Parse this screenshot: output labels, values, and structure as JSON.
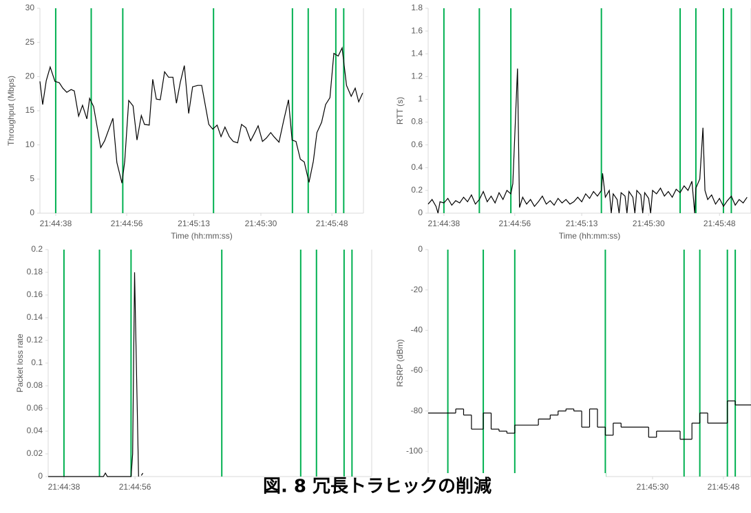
{
  "caption": "図. 8 冗長トラヒックの削減",
  "chart_data": [
    {
      "type": "line",
      "y_label": "Throughput (Mbps)",
      "x_label": "Time (hh:mm:ss)",
      "color": "#000000",
      "xlim": [
        "21:44:34",
        "21:45:56"
      ],
      "xticks": [
        "21:44:38",
        "21:44:56",
        "21:45:13",
        "21:45:30",
        "21:45:48"
      ],
      "ylim": [
        0,
        30
      ],
      "yticks": [
        0,
        5,
        10,
        15,
        20,
        25,
        30
      ],
      "vlines": [
        "21:44:38",
        "21:44:47",
        "21:44:55",
        "21:45:18",
        "21:45:38",
        "21:45:42",
        "21:45:49",
        "21:45:51"
      ],
      "vline_color": "#00b050",
      "x": [
        "21:44:34",
        "21:44:34.7",
        "21:44:35.6",
        "21:44:36.6",
        "21:44:37.8",
        "21:44:38.9",
        "21:44:39.8",
        "21:44:40.8",
        "21:44:41.9",
        "21:44:42.7",
        "21:44:43.8",
        "21:44:44.8",
        "21:44:45.9",
        "21:44:46.6",
        "21:44:47.6",
        "21:44:49.4",
        "21:44:50.4",
        "21:44:52.5",
        "21:44:53.5",
        "21:44:54.8",
        "21:44:55.5",
        "21:44:56.5",
        "21:44:57.6",
        "21:44:58.6",
        "21:44:59.7",
        "21:45:00.5",
        "21:45:01.7",
        "21:45:02.6",
        "21:45:03.5",
        "21:45:04.5",
        "21:45:05.6",
        "21:45:06.6",
        "21:45:07.7",
        "21:45:08.6",
        "21:45:09.6",
        "21:45:10.6",
        "21:45:11.7",
        "21:45:12.7",
        "21:45:14",
        "21:45:15",
        "21:45:16.8",
        "21:45:17.8",
        "21:45:18.9",
        "21:45:19.9",
        "21:45:20.9",
        "21:45:22",
        "21:45:23",
        "21:45:24.1",
        "21:45:25.1",
        "21:45:26.2",
        "21:45:27.4",
        "21:45:28.3",
        "21:45:29.3",
        "21:45:30.4",
        "21:45:31.4",
        "21:45:32.5",
        "21:45:33.3",
        "21:45:34.6",
        "21:45:35.8",
        "21:45:37",
        "21:45:37.9",
        "21:45:38.9",
        "21:45:40",
        "21:45:41",
        "21:45:42.2",
        "21:45:43.3",
        "21:45:44.2",
        "21:45:45.4",
        "21:45:46.4",
        "21:45:47.5",
        "21:45:48.5",
        "21:45:49.6",
        "21:45:50.6",
        "21:45:51.7",
        "21:45:52.9",
        "21:45:53.9",
        "21:45:54.8",
        "21:45:55.8"
      ],
      "values": [
        19.3,
        15.9,
        19.4,
        21.4,
        19.3,
        19.1,
        18.3,
        17.7,
        18.1,
        17.9,
        14.2,
        15.8,
        13.8,
        16.8,
        15.6,
        9.6,
        10.6,
        13.9,
        7.4,
        4.4,
        7.6,
        16.5,
        15.7,
        10.7,
        14.3,
        13,
        12.9,
        19.6,
        16.7,
        16.6,
        20.7,
        19.9,
        19.9,
        16.1,
        19.2,
        21.6,
        14.6,
        18.5,
        18.7,
        18.7,
        13,
        12.3,
        12.9,
        11.2,
        12.6,
        11.2,
        10.5,
        10.3,
        13,
        12.5,
        10.6,
        11.6,
        12.8,
        10.5,
        11,
        11.8,
        11.2,
        10.4,
        13.6,
        16.6,
        10.7,
        10.5,
        7.9,
        7.5,
        4.5,
        7.6,
        11.8,
        13.3,
        15.9,
        16.9,
        23.4,
        23,
        24.2,
        18.7,
        17.1,
        18.3,
        16.3,
        17.6
      ]
    },
    {
      "type": "line",
      "y_label": "RTT (s)",
      "x_label": "Time (hh:mm:ss)",
      "color": "#000000",
      "xlim": [
        "21:44:34",
        "21:45:56"
      ],
      "xticks": [
        "21:44:38",
        "21:44:56",
        "21:45:13",
        "21:45:30",
        "21:45:48"
      ],
      "ylim": [
        0,
        1.8
      ],
      "yticks": [
        0,
        0.2,
        0.4,
        0.6,
        0.8,
        1,
        1.2,
        1.4,
        1.6,
        1.8
      ],
      "vlines": [
        "21:44:38",
        "21:44:47",
        "21:44:55",
        "21:45:18",
        "21:45:38",
        "21:45:42",
        "21:45:49",
        "21:45:51"
      ],
      "vline_color": "#00b050",
      "x": [
        "21:44:34",
        "21:44:35",
        "21:44:36",
        "21:44:36.5",
        "21:44:37",
        "21:44:38",
        "21:44:39",
        "21:44:40",
        "21:44:41",
        "21:44:42",
        "21:44:43",
        "21:44:44",
        "21:44:45",
        "21:44:46",
        "21:44:47",
        "21:44:48",
        "21:44:49",
        "21:44:50",
        "21:44:51",
        "21:44:52",
        "21:44:53",
        "21:44:54",
        "21:44:55",
        "21:44:55.5",
        "21:44:56.7",
        "21:44:57.2",
        "21:44:58",
        "21:44:59",
        "21:45:00",
        "21:45:01",
        "21:45:02",
        "21:45:03",
        "21:45:04",
        "21:45:05",
        "21:45:06",
        "21:45:07",
        "21:45:08",
        "21:45:09",
        "21:45:10",
        "21:45:11",
        "21:45:12",
        "21:45:13",
        "21:45:14",
        "21:45:15",
        "21:45:16",
        "21:45:17",
        "21:45:18",
        "21:45:18.3",
        "21:45:19",
        "21:45:20",
        "21:45:20.5",
        "21:45:21",
        "21:45:22",
        "21:45:22.5",
        "21:45:23",
        "21:45:24",
        "21:45:24.5",
        "21:45:25",
        "21:45:26",
        "21:45:26.5",
        "21:45:27",
        "21:45:28",
        "21:45:28.5",
        "21:45:29",
        "21:45:30",
        "21:45:30.5",
        "21:45:31",
        "21:45:32",
        "21:45:33",
        "21:45:34",
        "21:45:35",
        "21:45:36",
        "21:45:37",
        "21:45:38",
        "21:45:39",
        "21:45:40",
        "21:45:41",
        "21:45:41.7",
        "21:45:42",
        "21:45:43",
        "21:45:43.8",
        "21:45:44.3",
        "21:45:45",
        "21:45:46",
        "21:45:47",
        "21:45:48",
        "21:45:49",
        "21:45:50",
        "21:45:51",
        "21:45:52",
        "21:45:53",
        "21:45:54",
        "21:45:55"
      ],
      "values": [
        0.08,
        0.12,
        0.06,
        0,
        0.1,
        0.09,
        0.13,
        0.07,
        0.11,
        0.09,
        0.14,
        0.1,
        0.16,
        0.08,
        0.12,
        0.19,
        0.1,
        0.15,
        0.09,
        0.18,
        0.12,
        0.2,
        0.17,
        0.26,
        1.27,
        0.05,
        0.14,
        0.08,
        0.12,
        0.06,
        0.1,
        0.15,
        0.08,
        0.11,
        0.07,
        0.13,
        0.09,
        0.12,
        0.08,
        0.1,
        0.14,
        0.1,
        0.17,
        0.13,
        0.19,
        0.15,
        0.2,
        0.35,
        0.14,
        0.2,
        0,
        0.17,
        0.12,
        0,
        0.18,
        0.15,
        0,
        0.19,
        0.14,
        0,
        0.2,
        0.16,
        0,
        0.18,
        0.13,
        0,
        0.2,
        0.17,
        0.22,
        0.15,
        0.19,
        0.14,
        0.21,
        0.18,
        0.24,
        0.2,
        0.28,
        0,
        0.22,
        0.3,
        0.75,
        0.2,
        0.12,
        0.16,
        0.08,
        0.13,
        0.06,
        0.11,
        0.15,
        0.07,
        0.12,
        0.09,
        0.14
      ]
    },
    {
      "type": "line",
      "y_label": "Packet loss rate",
      "color": "#000000",
      "xlim": [
        "21:44:34",
        "21:45:56"
      ],
      "xticks": [
        "21:44:38",
        "21:44:56"
      ],
      "ylim": [
        0,
        0.2
      ],
      "yticks": [
        0,
        0.02,
        0.04,
        0.06,
        0.08,
        0.1,
        0.12,
        0.14,
        0.16,
        0.18,
        0.2
      ],
      "vlines": [
        "21:44:38",
        "21:44:47",
        "21:44:55",
        "21:45:18",
        "21:45:38",
        "21:45:42",
        "21:45:49",
        "21:45:51"
      ],
      "vline_color": "#00b050",
      "x": [
        "21:44:34",
        "21:44:48",
        "21:44:48.5",
        "21:44:49",
        "21:44:55",
        "21:44:55.4",
        "21:44:55.9",
        "21:44:56.9",
        "21:44:57.2",
        "21:44:57.6",
        "21:44:58"
      ],
      "values": [
        0,
        0,
        0.003,
        0,
        0,
        0.02,
        0.18,
        0,
        null,
        0.001,
        0.003
      ]
    },
    {
      "type": "step",
      "y_label": "RSRP (dBm)",
      "color": "#000000",
      "xlim": [
        "21:44:33",
        "21:45:55"
      ],
      "xticks": [
        "21:45:30",
        "21:45:48"
      ],
      "ylim": [
        -112.5,
        0
      ],
      "yticks": [
        -100,
        -80,
        -60,
        -40,
        -20,
        0
      ],
      "vlines": [
        "21:44:38",
        "21:44:47",
        "21:44:55",
        "21:45:18",
        "21:45:38",
        "21:45:42",
        "21:45:49",
        "21:45:51"
      ],
      "vline_color": "#00b050",
      "x": [
        "21:44:33",
        "21:44:40",
        "21:44:42",
        "21:44:44",
        "21:44:47",
        "21:44:49",
        "21:44:51",
        "21:44:53",
        "21:44:55",
        "21:45:01",
        "21:45:04",
        "21:45:06",
        "21:45:08",
        "21:45:10",
        "21:45:12",
        "21:45:14",
        "21:45:16",
        "21:45:18",
        "21:45:20",
        "21:45:22",
        "21:45:29",
        "21:45:31",
        "21:45:37",
        "21:45:40",
        "21:45:42",
        "21:45:44",
        "21:45:49",
        "21:45:51"
      ],
      "values": [
        -81,
        -79,
        -82,
        -89,
        -81,
        -89,
        -90,
        -91,
        -87,
        -84,
        -82,
        -80,
        -79,
        -80,
        -88,
        -79,
        -88,
        -92,
        -86,
        -88,
        -93,
        -90,
        -94,
        -86,
        -81,
        -86,
        -75,
        -77
      ]
    }
  ]
}
